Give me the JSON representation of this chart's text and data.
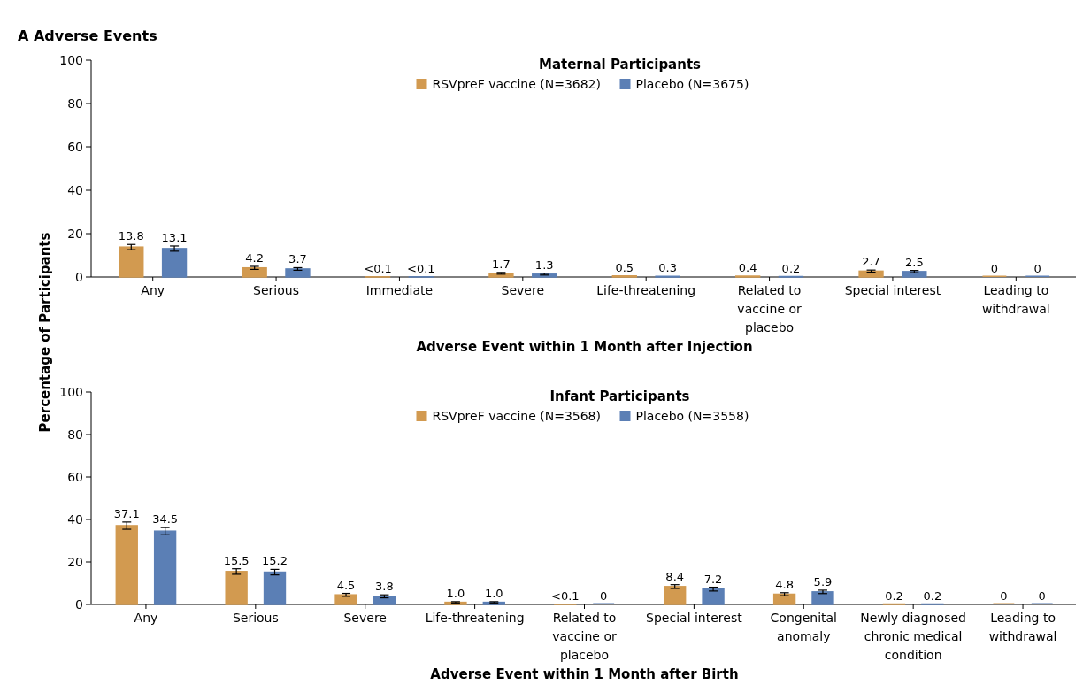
{
  "chart_data": [
    {
      "type": "bar",
      "title": "Maternal Participants",
      "xlabel": "Adverse Event within 1 Month after Injection",
      "ylabel": "Percentage of Participants",
      "annotations": [
        "A  Adverse Events"
      ],
      "categories": [
        "Any",
        "Serious",
        "Immediate",
        "Severe",
        "Life-threatening",
        "Related to vaccine or placebo",
        "Special interest",
        "Leading to withdrawal"
      ],
      "series": [
        {
          "name": "RSVpreF vaccine (N=3682)",
          "color": "#d29a50",
          "values": [
            13.8,
            4.2,
            0.05,
            1.7,
            0.5,
            0.4,
            2.7,
            0
          ],
          "value_labels": [
            "13.8",
            "4.2",
            "<0.1",
            "1.7",
            "0.5",
            "0.4",
            "2.7",
            "0"
          ],
          "errors": [
            1.2,
            0.7,
            null,
            0.4,
            null,
            null,
            0.5,
            null
          ]
        },
        {
          "name": "Placebo (N=3675)",
          "color": "#5b7fb5",
          "values": [
            13.1,
            3.7,
            0.05,
            1.3,
            0.3,
            0.2,
            2.5,
            0
          ],
          "value_labels": [
            "13.1",
            "3.7",
            "<0.1",
            "1.3",
            "0.3",
            "0.2",
            "2.5",
            "0"
          ],
          "errors": [
            1.2,
            0.6,
            null,
            0.4,
            null,
            null,
            0.5,
            null
          ]
        }
      ],
      "ylim": [
        0,
        100
      ],
      "yticks": [
        0,
        20,
        40,
        60,
        80,
        100
      ],
      "grid": false,
      "legend": "top"
    },
    {
      "type": "bar",
      "title": "Infant Participants",
      "xlabel": "Adverse Event within 1 Month after Birth",
      "categories": [
        "Any",
        "Serious",
        "Severe",
        "Life-threatening",
        "Related to vaccine or placebo",
        "Special interest",
        "Congenital anomaly",
        "Newly diagnosed chronic medical condition",
        "Leading to withdrawal"
      ],
      "series": [
        {
          "name": "RSVpreF vaccine (N=3568)",
          "color": "#d29a50",
          "values": [
            37.1,
            15.5,
            4.5,
            1.0,
            0.05,
            8.4,
            4.8,
            0.2,
            0
          ],
          "value_labels": [
            "37.1",
            "15.5",
            "4.5",
            "1.0",
            "<0.1",
            "8.4",
            "4.8",
            "0.2",
            "0"
          ],
          "errors": [
            1.7,
            1.3,
            0.7,
            0.3,
            null,
            0.9,
            0.7,
            null,
            null
          ]
        },
        {
          "name": "Placebo (N=3558)",
          "color": "#5b7fb5",
          "values": [
            34.5,
            15.2,
            3.8,
            1.0,
            0,
            7.2,
            5.9,
            0.2,
            0
          ],
          "value_labels": [
            "34.5",
            "15.2",
            "3.8",
            "1.0",
            "0",
            "7.2",
            "5.9",
            "0.2",
            "0"
          ],
          "errors": [
            1.7,
            1.3,
            0.7,
            0.3,
            null,
            0.9,
            0.8,
            null,
            null
          ]
        }
      ],
      "ylim": [
        0,
        100
      ],
      "yticks": [
        0,
        20,
        40,
        60,
        80,
        100
      ],
      "grid": false,
      "legend": "top"
    }
  ]
}
